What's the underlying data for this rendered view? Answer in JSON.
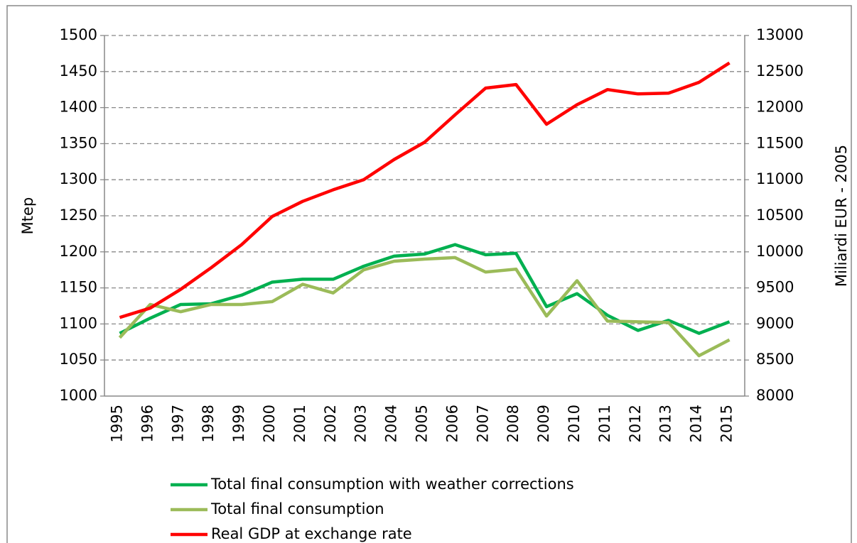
{
  "chart_data": {
    "type": "line",
    "y_label": "Mtep",
    "y2_label": "Miliardi EUR - 2005",
    "categories": [
      "1995",
      "1996",
      "1997",
      "1998",
      "1999",
      "2000",
      "2001",
      "2002",
      "2003",
      "2004",
      "2005",
      "2006",
      "2007",
      "2008",
      "2009",
      "2010",
      "2011",
      "2012",
      "2013",
      "2014",
      "2015"
    ],
    "series": [
      {
        "name": "Total final consumption with weather corrections",
        "color": "#00b050",
        "values": [
          1087,
          1108,
          1127,
          1128,
          1140,
          1158,
          1162,
          1162,
          1180,
          1194,
          1197,
          1210,
          1196,
          1198,
          1124,
          1142,
          1112,
          1091,
          1105,
          1087,
          1103
        ]
      },
      {
        "name": "Total final consumption",
        "color": "#9bbb59",
        "values": [
          1081,
          1127,
          1117,
          1127,
          1127,
          1131,
          1155,
          1143,
          1175,
          1187,
          1190,
          1192,
          1172,
          1176,
          1111,
          1160,
          1104,
          1103,
          1102,
          1056,
          1078
        ]
      },
      {
        "name": "Real GDP at exchange rate",
        "color": "#ff0000",
        "axis": "y2",
        "values": [
          9090,
          9220,
          9480,
          9780,
          10100,
          10490,
          10700,
          10860,
          11000,
          11280,
          11520,
          11900,
          12270,
          12320,
          11770,
          12040,
          12250,
          12190,
          12200,
          12350,
          12620
        ]
      }
    ],
    "ylim": [
      1000,
      1500
    ],
    "yticks": [
      1000,
      1050,
      1100,
      1150,
      1200,
      1250,
      1300,
      1350,
      1400,
      1450,
      1500
    ],
    "y2lim": [
      8000,
      13000
    ],
    "y2ticks": [
      8000,
      8500,
      9000,
      9500,
      10000,
      10500,
      11000,
      11500,
      12000,
      12500,
      13000
    ],
    "grid": true
  }
}
